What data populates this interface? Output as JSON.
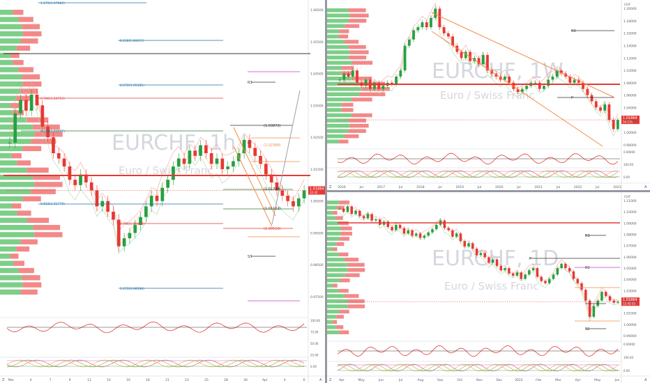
{
  "colors": {
    "bull": "#26a041",
    "bear": "#e53935",
    "fib": "#1f6fa8",
    "ma": "#f58a42",
    "support": "#2e7d32",
    "magenta": "#c43cc4",
    "grey": "#555a66"
  },
  "panels": {
    "h1": {
      "watermark_symbol": "EURCHF, 1h",
      "watermark_name": "Euro / Swiss Franc",
      "fib_labels": [
        "1.272(1.07983)",
        "-0.618(1.06657)",
        "0.272(1.05181)",
        "0.786(1.04753)",
        "0.618(1.03677)",
        "0.618(1.01770)",
        "0.786(1.00678)",
        "1.272(0.98598)"
      ],
      "level_labels": [
        "R3",
        "(1.03872)",
        "(1.02368)",
        "(1.01794)",
        "(1.01102)",
        "(1.00510)",
        "S3",
        "P"
      ],
      "price_tag": [
        "1.01864",
        "12:42"
      ],
      "axis_left": "Z",
      "axis_right": "A",
      "y_ticks": [
        "1.06500",
        "1.05500",
        "1.04500",
        "1.03500",
        "1.02500",
        "1.01500",
        "1.00500",
        "0.99500",
        "0.98500",
        "0.97500"
      ],
      "x_ticks": [
        "Mar",
        "4",
        "7",
        "9",
        "11",
        "14",
        "16",
        "18",
        "21",
        "23",
        "25",
        "28",
        "30",
        "Apr",
        "4",
        "6"
      ],
      "osc_ticks": [
        "100.00",
        "75.00",
        "50.00",
        "25.00",
        "0.00"
      ]
    },
    "w1": {
      "watermark_symbol": "EURCHF, 1W",
      "watermark_name": "Euro / Swiss Franc",
      "level_labels": [
        "R3",
        "P"
      ],
      "price_tag": [
        "1.01864",
        "3d 11h"
      ],
      "axis_corner": "CHF",
      "axis_left": "Z",
      "axis_right": "A",
      "y_ticks": [
        "1.20000",
        "1.18000",
        "1.16000",
        "1.14000",
        "1.12000",
        "1.10000",
        "1.08000",
        "1.06000",
        "1.04000",
        "1.02000",
        "1.00000",
        "0.98000"
      ],
      "x_ticks": [
        "2016",
        "Jul",
        "2017",
        "Jul",
        "2018",
        "Jul",
        "2019",
        "Jul",
        "2020",
        "Jul",
        "2021",
        "Jul",
        "2022",
        "Jul",
        "2023"
      ],
      "osc_ticks": [
        "0.00000",
        "100.00",
        "0.00"
      ]
    },
    "d1": {
      "watermark_symbol": "EURCHF, 1D",
      "watermark_name": "Euro / Swiss Franc",
      "level_labels": [
        "R3",
        "R2",
        "P",
        "S2"
      ],
      "price_tag": [
        "1.01864",
        "12:42:53"
      ],
      "axis_corner": "CHF",
      "axis_left": "Z",
      "axis_right": "A",
      "y_ticks": [
        "1.11000",
        "1.10000",
        "1.09000",
        "1.08000",
        "1.07000",
        "1.06000",
        "1.05000",
        "1.04000",
        "1.03000",
        "1.02000",
        "1.01000",
        "1.00000",
        "0.99000"
      ],
      "x_ticks": [
        "Apr",
        "May",
        "Jun",
        "Jul",
        "Aug",
        "Sep",
        "Oct",
        "Nov",
        "Dec",
        "2022",
        "Feb",
        "Mar",
        "Apr",
        "May",
        "Jun"
      ],
      "osc_ticks": [
        "0.00000",
        "100.00",
        "0.00"
      ]
    }
  },
  "chart_data": [
    {
      "type": "candlestick",
      "symbol": "EURCHF",
      "timeframe": "1h",
      "title": "EURCHF, 1h",
      "subtitle": "Euro / Swiss Franc",
      "ylim": [
        0.975,
        1.085
      ],
      "close": [
        1.034,
        1.045,
        1.05,
        1.046,
        1.052,
        1.048,
        1.04,
        1.036,
        1.03,
        1.028,
        1.025,
        1.02,
        1.018,
        1.022,
        1.019,
        1.016,
        1.01,
        1.012,
        1.008,
        1.005,
        0.995,
        0.998,
        1.0,
        1.003,
        1.006,
        1.01,
        1.014,
        1.012,
        1.017,
        1.02,
        1.025,
        1.028,
        1.026,
        1.031,
        1.029,
        1.033,
        1.03,
        1.026,
        1.028,
        1.024,
        1.025,
        1.027,
        1.03,
        1.035,
        1.032,
        1.029,
        1.026,
        1.022,
        1.019,
        1.016,
        1.014,
        1.012,
        1.01,
        1.013,
        1.016
      ]
    },
    {
      "type": "candlestick",
      "symbol": "EURCHF",
      "timeframe": "1W",
      "title": "EURCHF, 1W",
      "subtitle": "Euro / Swiss Franc",
      "ylim": [
        0.975,
        1.205
      ],
      "close": [
        1.085,
        1.095,
        1.09,
        1.1,
        1.08,
        1.075,
        1.085,
        1.07,
        1.08,
        1.07,
        1.075,
        1.08,
        1.078,
        1.09,
        1.1,
        1.14,
        1.15,
        1.165,
        1.17,
        1.178,
        1.17,
        1.185,
        1.2,
        1.17,
        1.16,
        1.155,
        1.14,
        1.13,
        1.12,
        1.13,
        1.115,
        1.12,
        1.11,
        1.125,
        1.1,
        1.095,
        1.09,
        1.085,
        1.09,
        1.08,
        1.07,
        1.065,
        1.07,
        1.075,
        1.08,
        1.08,
        1.07,
        1.075,
        1.085,
        1.09,
        1.1,
        1.095,
        1.09,
        1.08,
        1.085,
        1.08,
        1.07,
        1.06,
        1.05,
        1.04,
        1.035,
        1.045,
        1.02,
        1.005,
        1.02
      ]
    },
    {
      "type": "candlestick",
      "symbol": "EURCHF",
      "timeframe": "1D",
      "title": "EURCHF, 1D",
      "subtitle": "Euro / Swiss Franc",
      "ylim": [
        0.985,
        1.115
      ],
      "close": [
        1.105,
        1.102,
        1.107,
        1.1,
        1.103,
        1.098,
        1.096,
        1.1,
        1.094,
        1.095,
        1.09,
        1.093,
        1.088,
        1.085,
        1.09,
        1.087,
        1.082,
        1.085,
        1.08,
        1.082,
        1.078,
        1.08,
        1.083,
        1.086,
        1.09,
        1.094,
        1.087,
        1.085,
        1.079,
        1.082,
        1.075,
        1.07,
        1.073,
        1.068,
        1.062,
        1.064,
        1.06,
        1.055,
        1.058,
        1.052,
        1.048,
        1.05,
        1.045,
        1.043,
        1.046,
        1.04,
        1.044,
        1.048,
        1.05,
        1.042,
        1.038,
        1.036,
        1.04,
        1.044,
        1.05,
        1.054,
        1.05,
        1.047,
        1.04,
        1.036,
        1.03,
        1.02,
        1.005,
        1.015,
        1.02,
        1.028,
        1.024,
        1.02,
        1.018,
        1.019
      ]
    }
  ]
}
